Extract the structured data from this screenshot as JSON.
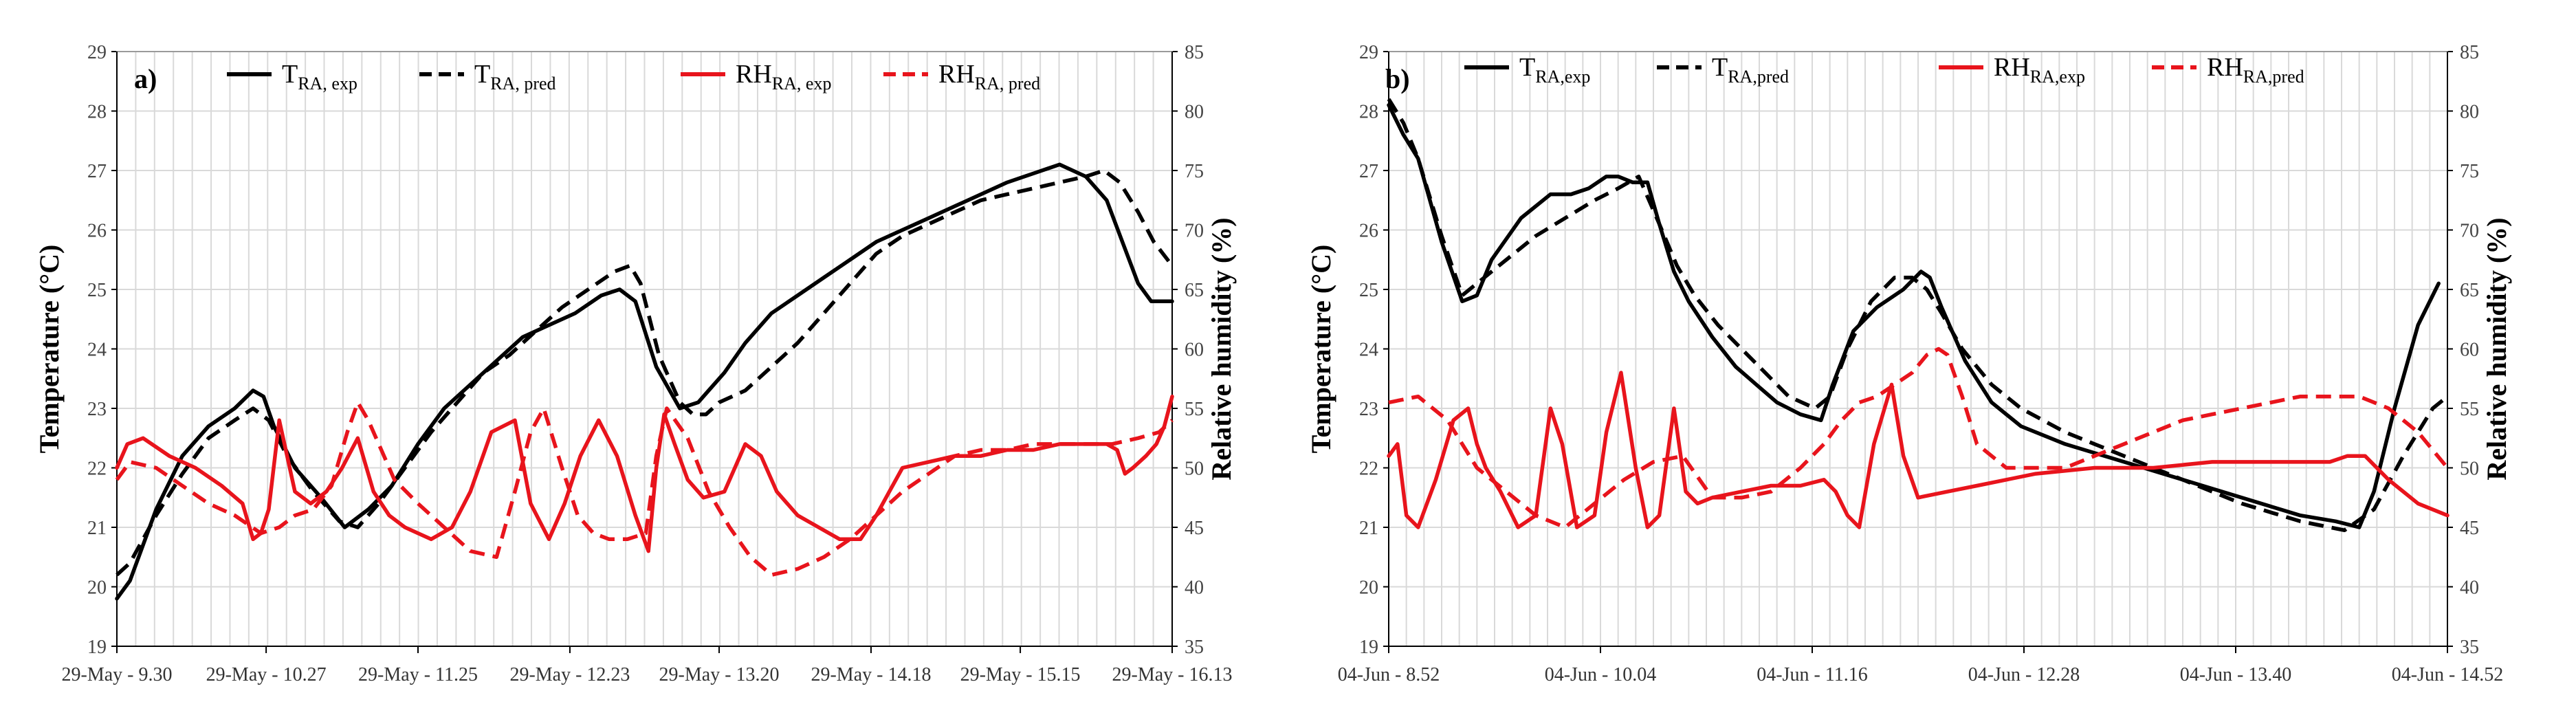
{
  "chart_data": [
    {
      "type": "line",
      "panel_label": "a)",
      "ylabel": "Temperature (°C)",
      "ylabel2": "Relative humidity (%)",
      "ylim": [
        19,
        29
      ],
      "ylim2": [
        35,
        85
      ],
      "yticks": [
        "19",
        "20",
        "21",
        "22",
        "23",
        "24",
        "25",
        "26",
        "27",
        "28",
        "29"
      ],
      "yticks2": [
        "35",
        "40",
        "45",
        "50",
        "55",
        "60",
        "65",
        "70",
        "75",
        "80",
        "85"
      ],
      "xlim": [
        0,
        403
      ],
      "xticks": [
        {
          "t": 0,
          "label": "29-May - 9.30"
        },
        {
          "t": 57,
          "label": "29-May - 10.27"
        },
        {
          "t": 115,
          "label": "29-May - 11.25"
        },
        {
          "t": 173,
          "label": "29-May - 12.23"
        },
        {
          "t": 230,
          "label": "29-May - 13.20"
        },
        {
          "t": 288,
          "label": "29-May - 14.18"
        },
        {
          "t": 345,
          "label": "29-May - 15.15"
        },
        {
          "t": 403,
          "label": "29-May - 16.13"
        }
      ],
      "legend": [
        {
          "base": "T",
          "sub": "RA, exp",
          "color": "#000000",
          "dash": false
        },
        {
          "base": "T",
          "sub": "RA, pred",
          "color": "#000000",
          "dash": true
        },
        {
          "base": "RH",
          "sub": "RA, exp",
          "color": "#e8141c",
          "dash": false
        },
        {
          "base": "RH",
          "sub": "RA, pred",
          "color": "#e8141c",
          "dash": true
        }
      ],
      "series": [
        {
          "name": "T_RA,exp",
          "axis": "left",
          "color": "#000000",
          "dash": false,
          "x": [
            0,
            5,
            15,
            25,
            35,
            45,
            52,
            56,
            60,
            68,
            78,
            87,
            96,
            105,
            115,
            125,
            135,
            145,
            155,
            165,
            175,
            185,
            192,
            198,
            206,
            215,
            222,
            226,
            232,
            240,
            250,
            260,
            270,
            280,
            290,
            300,
            310,
            320,
            330,
            340,
            350,
            360,
            370,
            378,
            384,
            390,
            395,
            400,
            403
          ],
          "y": [
            19.8,
            20.1,
            21.3,
            22.2,
            22.7,
            23.0,
            23.3,
            23.2,
            22.7,
            22.0,
            21.5,
            21.0,
            21.3,
            21.7,
            22.4,
            23.0,
            23.4,
            23.8,
            24.2,
            24.4,
            24.6,
            24.9,
            25.0,
            24.8,
            23.7,
            23.0,
            23.1,
            23.3,
            23.6,
            24.1,
            24.6,
            24.9,
            25.2,
            25.5,
            25.8,
            26.0,
            26.2,
            26.4,
            26.6,
            26.8,
            26.95,
            27.1,
            26.9,
            26.5,
            25.8,
            25.1,
            24.8,
            24.8,
            24.8
          ]
        },
        {
          "name": "T_RA,pred",
          "axis": "left",
          "color": "#000000",
          "dash": true,
          "x": [
            0,
            5,
            15,
            25,
            35,
            45,
            52,
            58,
            65,
            75,
            85,
            92,
            100,
            110,
            120,
            130,
            140,
            150,
            160,
            170,
            180,
            190,
            196,
            200,
            207,
            215,
            220,
            225,
            230,
            240,
            250,
            260,
            270,
            280,
            290,
            300,
            310,
            320,
            330,
            340,
            350,
            360,
            370,
            377,
            383,
            390,
            396,
            403
          ],
          "y": [
            20.2,
            20.4,
            21.2,
            21.9,
            22.5,
            22.8,
            23.0,
            22.8,
            22.2,
            21.6,
            21.1,
            21.0,
            21.4,
            22.0,
            22.6,
            23.1,
            23.6,
            23.9,
            24.3,
            24.7,
            25.0,
            25.3,
            25.4,
            25.1,
            23.9,
            23.1,
            22.9,
            22.9,
            23.1,
            23.3,
            23.7,
            24.1,
            24.6,
            25.1,
            25.6,
            25.9,
            26.1,
            26.3,
            26.5,
            26.6,
            26.7,
            26.8,
            26.9,
            27.0,
            26.8,
            26.3,
            25.8,
            25.4
          ]
        },
        {
          "name": "RH_RA,exp",
          "axis": "right",
          "color": "#e8141c",
          "dash": false,
          "x": [
            0,
            4,
            10,
            20,
            30,
            40,
            48,
            52,
            55,
            58,
            62,
            68,
            74,
            80,
            86,
            92,
            98,
            104,
            110,
            115,
            120,
            128,
            135,
            143,
            152,
            158,
            165,
            171,
            177,
            184,
            191,
            198,
            203,
            206,
            209,
            213,
            218,
            224,
            232,
            240,
            246,
            252,
            260,
            268,
            276,
            284,
            290,
            295,
            300,
            310,
            320,
            330,
            340,
            350,
            360,
            370,
            378,
            382,
            385,
            388,
            393,
            397,
            400,
            403
          ],
          "y": [
            50,
            52,
            52.5,
            51,
            50,
            48.5,
            47,
            44,
            44.5,
            46.5,
            54,
            48,
            47,
            48,
            50,
            52.5,
            48,
            46,
            45,
            44.5,
            44,
            45,
            48,
            53,
            54,
            47,
            44,
            47,
            51,
            54,
            51,
            46,
            43,
            50,
            54.5,
            52,
            49,
            47.5,
            48,
            52,
            51,
            48,
            46,
            45,
            44,
            44,
            46,
            48,
            50,
            50.5,
            51,
            51,
            51.5,
            51.5,
            52,
            52,
            52,
            51.5,
            49.5,
            50,
            51,
            52,
            53.5,
            56
          ]
        },
        {
          "name": "RH_RA,pred",
          "axis": "right",
          "color": "#e8141c",
          "dash": true,
          "x": [
            0,
            5,
            15,
            25,
            35,
            45,
            55,
            62,
            68,
            75,
            82,
            88,
            92,
            96,
            101,
            106,
            115,
            125,
            135,
            145,
            152,
            158,
            163,
            170,
            176,
            182,
            188,
            195,
            202,
            206,
            210,
            218,
            226,
            234,
            242,
            250,
            260,
            270,
            280,
            290,
            300,
            310,
            320,
            330,
            340,
            350,
            360,
            370,
            380,
            390,
            398,
            403
          ],
          "y": [
            49,
            50.5,
            50,
            48.5,
            47,
            46,
            44.5,
            45,
            46,
            46.5,
            48.5,
            53,
            55.5,
            54,
            51.5,
            49,
            47,
            45,
            43,
            42.5,
            48,
            53,
            55,
            50,
            46,
            44.5,
            44,
            44,
            44.5,
            51,
            55,
            52.5,
            48,
            45,
            42.5,
            41,
            41.5,
            42.5,
            44,
            46,
            48,
            49.5,
            51,
            51.5,
            51.5,
            52,
            52,
            52,
            52,
            52.5,
            53,
            54
          ]
        }
      ]
    },
    {
      "type": "line",
      "panel_label": "b)",
      "ylabel": "Temperature (°C)",
      "ylabel2": "Relative humidity (%)",
      "ylim": [
        19,
        29
      ],
      "ylim2": [
        35,
        85
      ],
      "yticks": [
        "19",
        "20",
        "21",
        "22",
        "23",
        "24",
        "25",
        "26",
        "27",
        "28",
        "29"
      ],
      "yticks2": [
        "35",
        "40",
        "45",
        "50",
        "55",
        "60",
        "65",
        "70",
        "75",
        "80",
        "85"
      ],
      "xlim": [
        0,
        360
      ],
      "xticks": [
        {
          "t": 0,
          "label": "04-Jun - 8.52"
        },
        {
          "t": 72,
          "label": "04-Jun - 10.04"
        },
        {
          "t": 144,
          "label": "04-Jun - 11.16"
        },
        {
          "t": 216,
          "label": "04-Jun - 12.28"
        },
        {
          "t": 288,
          "label": "04-Jun - 13.40"
        },
        {
          "t": 360,
          "label": "04-Jun - 14.52"
        }
      ],
      "legend": [
        {
          "base": "T",
          "sub": "RA,exp",
          "color": "#000000",
          "dash": false
        },
        {
          "base": "T",
          "sub": "RA,pred",
          "color": "#000000",
          "dash": true
        },
        {
          "base": "RH",
          "sub": "RA,exp",
          "color": "#e8141c",
          "dash": false
        },
        {
          "base": "RH",
          "sub": "RA,pred",
          "color": "#e8141c",
          "dash": true
        }
      ],
      "series": [
        {
          "name": "T_RA,exp",
          "axis": "left",
          "color": "#000000",
          "dash": false,
          "x": [
            0,
            5,
            10,
            18,
            25,
            30,
            35,
            45,
            55,
            62,
            68,
            74,
            78,
            83,
            88,
            92,
            97,
            102,
            110,
            118,
            125,
            132,
            140,
            147,
            151,
            158,
            166,
            175,
            181,
            184,
            188,
            196,
            205,
            215,
            230,
            250,
            270,
            290,
            310,
            322,
            330,
            335,
            342,
            350,
            357
          ],
          "y": [
            28.1,
            27.6,
            27.2,
            25.8,
            24.8,
            24.9,
            25.5,
            26.2,
            26.6,
            26.6,
            26.7,
            26.9,
            26.9,
            26.8,
            26.8,
            26.1,
            25.3,
            24.8,
            24.2,
            23.7,
            23.4,
            23.1,
            22.9,
            22.8,
            23.4,
            24.3,
            24.7,
            25.0,
            25.3,
            25.2,
            24.7,
            23.8,
            23.1,
            22.7,
            22.4,
            22.1,
            21.8,
            21.5,
            21.2,
            21.1,
            21.0,
            21.6,
            23.0,
            24.4,
            25.1
          ]
        },
        {
          "name": "T_RA,pred",
          "axis": "left",
          "color": "#000000",
          "dash": true,
          "x": [
            0,
            5,
            10,
            18,
            25,
            30,
            40,
            50,
            60,
            70,
            78,
            85,
            92,
            98,
            104,
            112,
            120,
            128,
            136,
            145,
            150,
            156,
            164,
            172,
            178,
            183,
            188,
            195,
            205,
            215,
            230,
            250,
            270,
            290,
            310,
            325,
            335,
            345,
            355,
            360
          ],
          "y": [
            28.2,
            27.8,
            27.2,
            25.9,
            24.9,
            25.1,
            25.5,
            25.9,
            26.2,
            26.5,
            26.7,
            26.9,
            26.1,
            25.4,
            24.9,
            24.4,
            24.0,
            23.6,
            23.2,
            23.0,
            23.2,
            24.0,
            24.8,
            25.2,
            25.2,
            25.0,
            24.6,
            24.0,
            23.4,
            23.0,
            22.6,
            22.2,
            21.8,
            21.4,
            21.1,
            20.95,
            21.3,
            22.2,
            23.0,
            23.2
          ]
        },
        {
          "name": "RH_RA,exp",
          "axis": "right",
          "color": "#e8141c",
          "dash": false,
          "x": [
            0,
            3,
            6,
            10,
            16,
            22,
            27,
            30,
            33,
            38,
            44,
            50,
            55,
            59,
            64,
            70,
            74,
            79,
            84,
            88,
            92,
            97,
            101,
            105,
            110,
            120,
            130,
            140,
            148,
            152,
            156,
            160,
            165,
            171,
            175,
            180,
            190,
            200,
            210,
            220,
            240,
            260,
            280,
            300,
            320,
            326,
            332,
            340,
            350,
            360
          ],
          "y": [
            51,
            52,
            46,
            45,
            49,
            54,
            55,
            52,
            50,
            48,
            45,
            46,
            55,
            52,
            45,
            46,
            53,
            58,
            50,
            45,
            46,
            55,
            48,
            47,
            47.5,
            48,
            48.5,
            48.5,
            49,
            48,
            46,
            45,
            52,
            57,
            51,
            47.5,
            48,
            48.5,
            49,
            49.5,
            50,
            50,
            50.5,
            50.5,
            50.5,
            51,
            51,
            49,
            47,
            46
          ]
        },
        {
          "name": "RH_RA,pred",
          "axis": "right",
          "color": "#e8141c",
          "dash": true,
          "x": [
            0,
            10,
            20,
            30,
            40,
            50,
            60,
            70,
            80,
            90,
            100,
            110,
            120,
            130,
            140,
            148,
            154,
            160,
            166,
            172,
            178,
            183,
            187,
            190,
            195,
            200,
            210,
            220,
            230,
            240,
            250,
            260,
            270,
            280,
            290,
            300,
            310,
            320,
            330,
            340,
            350,
            360
          ],
          "y": [
            55.5,
            56,
            54,
            50,
            48,
            46,
            45,
            47,
            49,
            50.5,
            51,
            47.5,
            47.5,
            48,
            50,
            52,
            54,
            55.5,
            56,
            57,
            58,
            59.5,
            60,
            59.5,
            56,
            52,
            50,
            50,
            50,
            51,
            52,
            53,
            54,
            54.5,
            55,
            55.5,
            56,
            56,
            56,
            55,
            53,
            50
          ]
        }
      ]
    }
  ]
}
